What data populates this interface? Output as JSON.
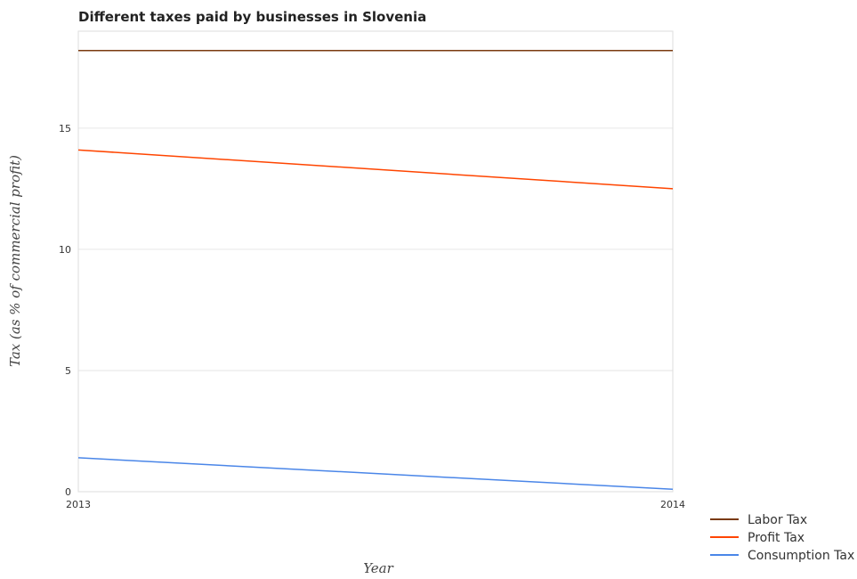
{
  "chart_data": {
    "type": "line",
    "title": "Different taxes paid by businesses in Slovenia",
    "xlabel": "Year",
    "ylabel": "Tax (as % of commercial profit)",
    "x": [
      "2013",
      "2014"
    ],
    "ylim": [
      0,
      19
    ],
    "yticks": [
      "0",
      "5",
      "10",
      "15"
    ],
    "grid": true,
    "legend_position": "bottom-right",
    "series": [
      {
        "name": "Labor Tax",
        "color": "#7a3a10",
        "values": [
          18.2,
          18.2
        ]
      },
      {
        "name": "Profit Tax",
        "color": "#ff4500",
        "values": [
          14.1,
          12.5
        ]
      },
      {
        "name": "Consumption Tax",
        "color": "#4a86e8",
        "values": [
          1.4,
          0.1
        ]
      }
    ]
  }
}
